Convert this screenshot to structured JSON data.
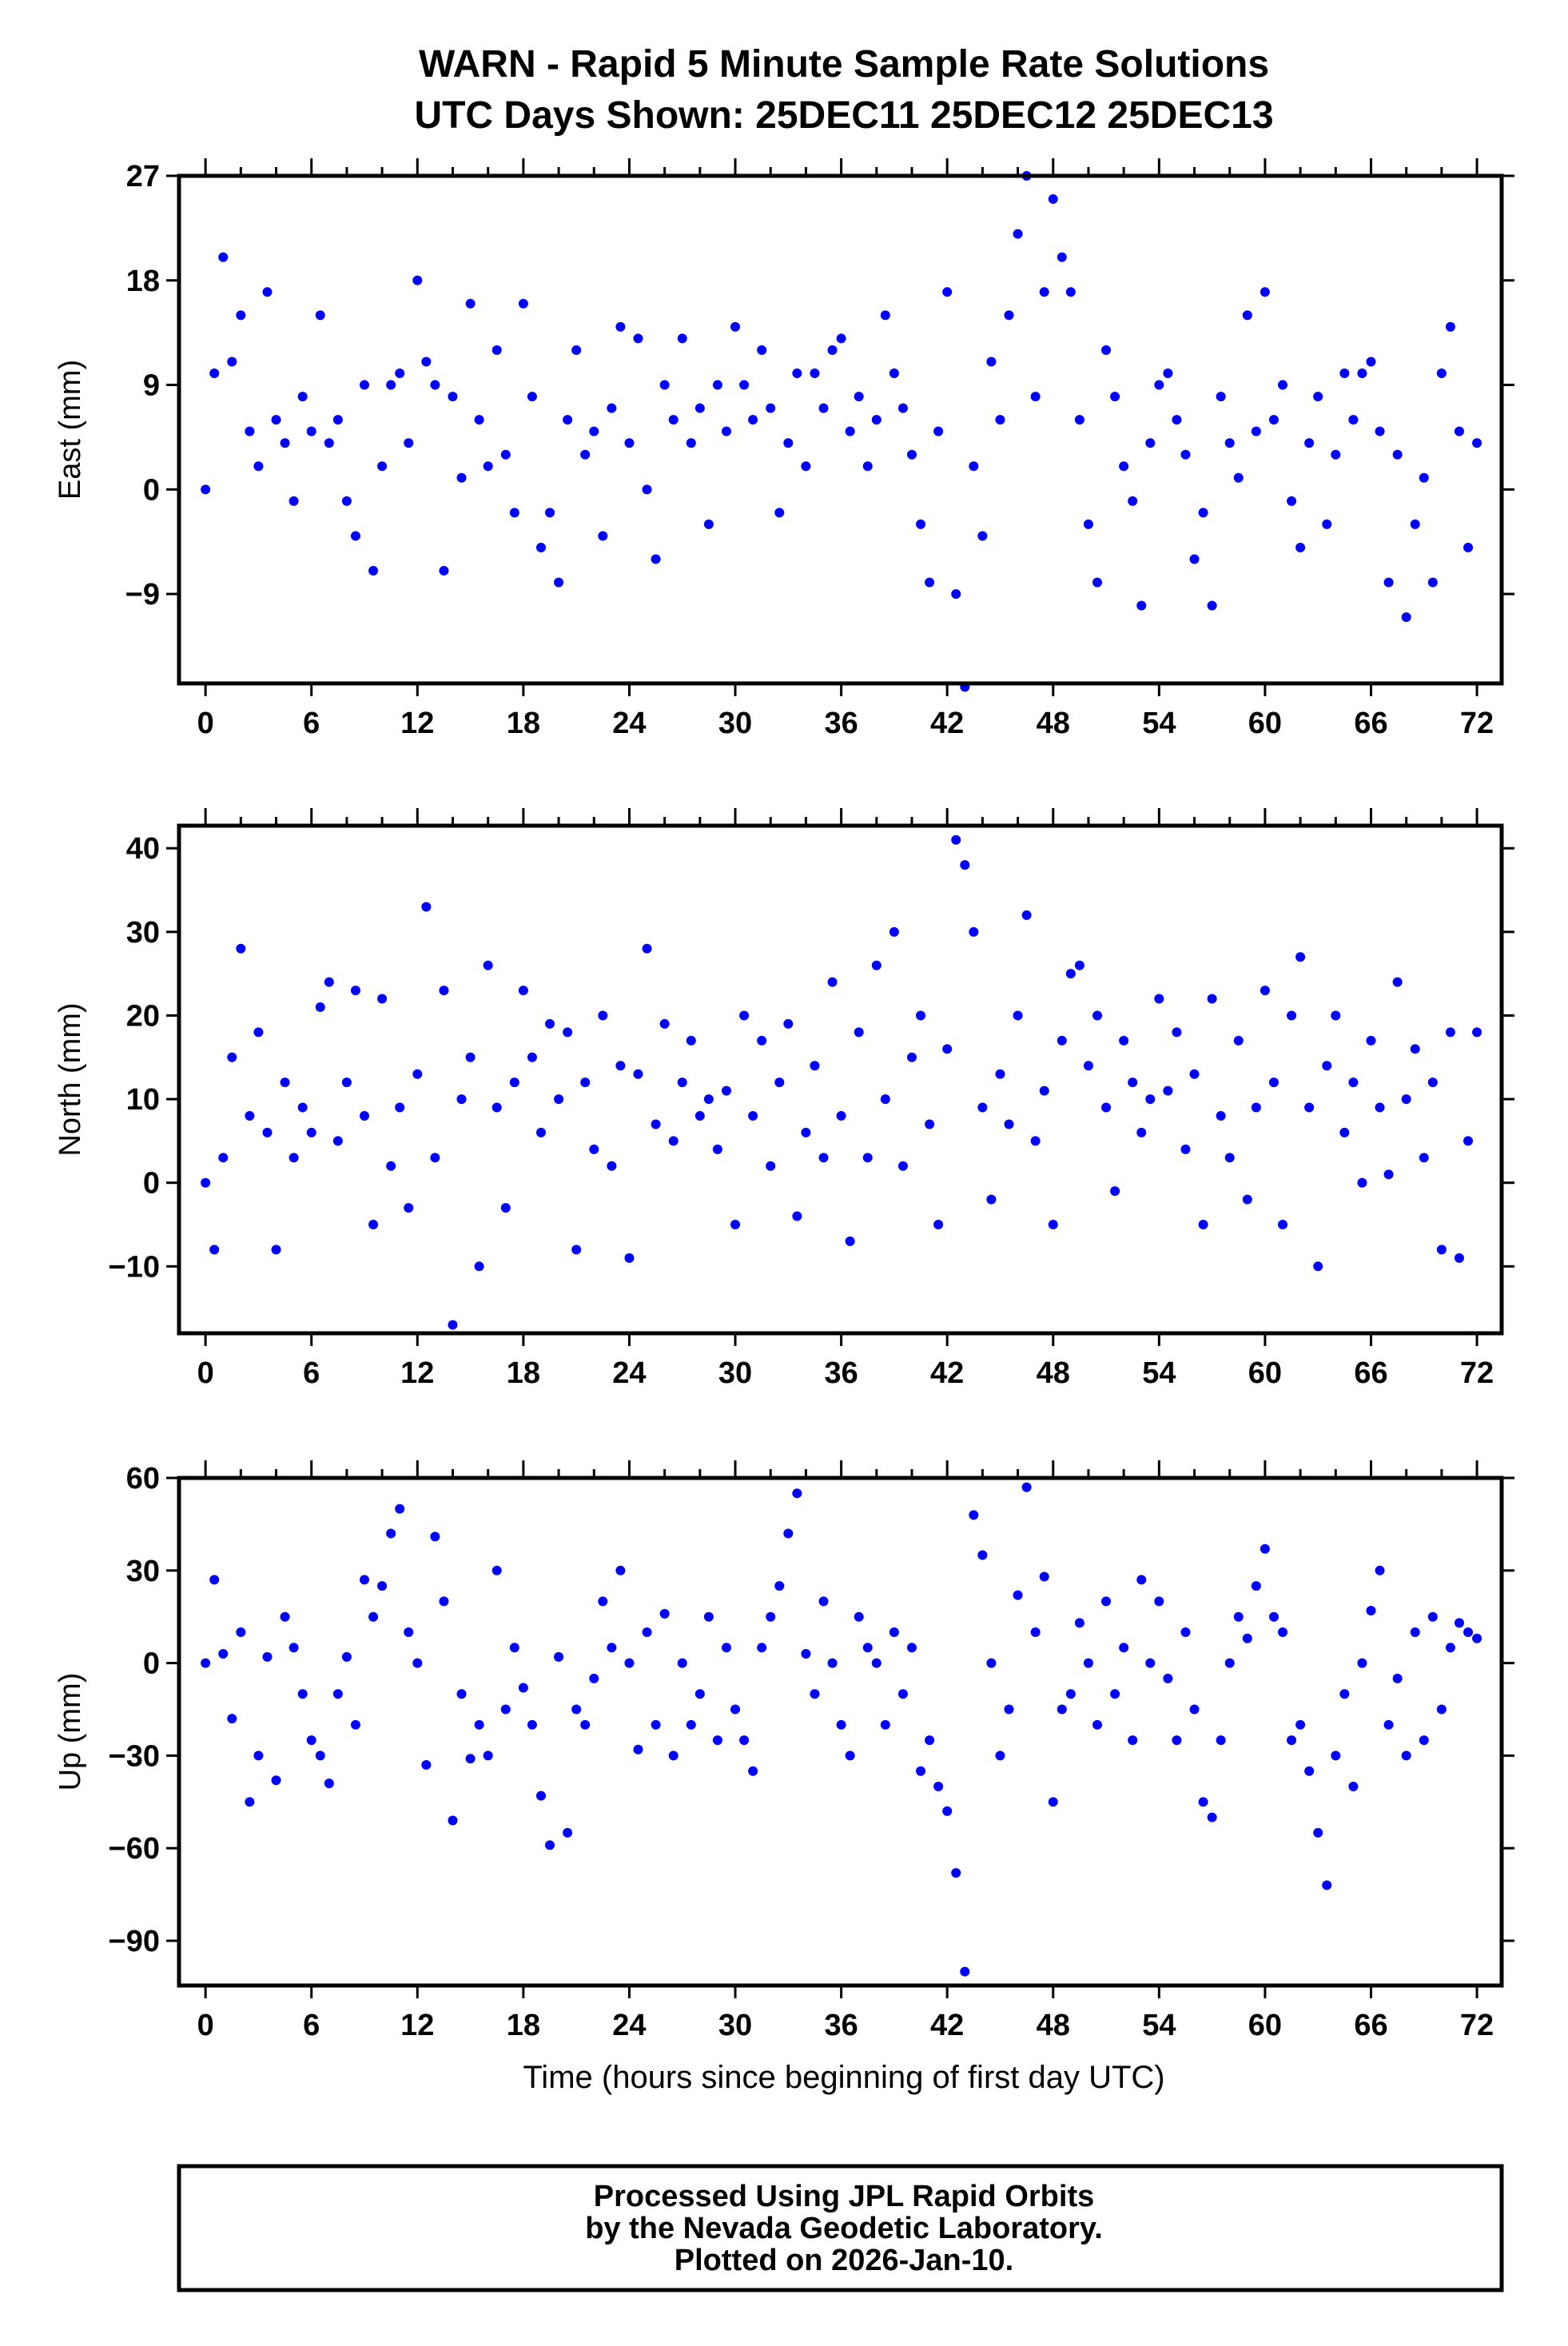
{
  "title": "WARN - Rapid 5 Minute Sample Rate Solutions",
  "subtitle": "UTC Days Shown:  25DEC11 25DEC12 25DEC13",
  "footer": {
    "line1": "Processed Using JPL Rapid Orbits",
    "line2": "by the Nevada Geodetic Laboratory.",
    "line3": "Plotted on 2026-Jan-10."
  },
  "colors": {
    "points": "#0000ff",
    "axes": "#000000"
  },
  "chart_data": [
    {
      "type": "scatter",
      "ylabel": "East (mm)",
      "xlabel": "",
      "xlim": [
        -1.5,
        73.4
      ],
      "ylim": [
        -16.7,
        27
      ],
      "xticks": [
        0,
        6,
        12,
        18,
        24,
        30,
        36,
        42,
        48,
        54,
        60,
        66,
        72
      ],
      "yticks": [
        27,
        18,
        9,
        0,
        -9
      ],
      "x_start": 0,
      "x_step": 0.5,
      "values": [
        0,
        10,
        20,
        11,
        15,
        5,
        2,
        17,
        6,
        4,
        -1,
        8,
        5,
        15,
        4,
        6,
        -1,
        -4,
        9,
        -7,
        2,
        9,
        10,
        4,
        18,
        11,
        9,
        -7,
        8,
        1,
        16,
        6,
        2,
        12,
        3,
        -2,
        16,
        8,
        -5,
        -2,
        -8,
        6,
        12,
        3,
        5,
        -4,
        7,
        14,
        4,
        13,
        0,
        -6,
        9,
        6,
        13,
        4,
        7,
        -3,
        9,
        5,
        14,
        9,
        6,
        12,
        7,
        -2,
        4,
        10,
        2,
        10,
        7,
        12,
        13,
        5,
        8,
        2,
        6,
        15,
        10,
        7,
        3,
        -3,
        -8,
        5,
        17,
        -9,
        -17,
        2,
        -4,
        11,
        6,
        15,
        22,
        27,
        8,
        17,
        25,
        20,
        17,
        6,
        -3,
        -8,
        12,
        8,
        2,
        -1,
        -10,
        4,
        9,
        10,
        6,
        3,
        -6,
        -2,
        -10,
        8,
        4,
        1,
        15,
        5,
        17,
        6,
        9,
        -1,
        -5,
        4,
        8,
        -3,
        3,
        10,
        6,
        10,
        11,
        5,
        -8,
        3,
        -11,
        -3,
        1,
        -8,
        10,
        14,
        5,
        -5,
        4
      ]
    },
    {
      "type": "scatter",
      "ylabel": "North (mm)",
      "xlabel": "",
      "xlim": [
        -1.5,
        73.4
      ],
      "ylim": [
        -18,
        42.7
      ],
      "xticks": [
        0,
        6,
        12,
        18,
        24,
        30,
        36,
        42,
        48,
        54,
        60,
        66,
        72
      ],
      "yticks": [
        40,
        30,
        20,
        10,
        0,
        -10
      ],
      "x_start": 0,
      "x_step": 0.5,
      "values": [
        0,
        -8,
        3,
        15,
        28,
        8,
        18,
        6,
        -8,
        12,
        3,
        9,
        6,
        21,
        24,
        5,
        12,
        23,
        8,
        -5,
        22,
        2,
        9,
        -3,
        13,
        33,
        3,
        23,
        -17,
        10,
        15,
        -10,
        26,
        9,
        -3,
        12,
        23,
        15,
        6,
        19,
        10,
        18,
        -8,
        12,
        4,
        20,
        2,
        14,
        -9,
        13,
        28,
        7,
        19,
        5,
        12,
        17,
        8,
        10,
        4,
        11,
        -5,
        20,
        8,
        17,
        2,
        12,
        19,
        -4,
        6,
        14,
        3,
        24,
        8,
        -7,
        18,
        3,
        26,
        10,
        30,
        2,
        15,
        20,
        7,
        -5,
        16,
        41,
        38,
        30,
        9,
        -2,
        13,
        7,
        20,
        32,
        5,
        11,
        -5,
        17,
        25,
        26,
        14,
        20,
        9,
        -1,
        17,
        12,
        6,
        10,
        22,
        11,
        18,
        4,
        13,
        -5,
        22,
        8,
        3,
        17,
        -2,
        9,
        23,
        12,
        -5,
        20,
        27,
        9,
        -10,
        14,
        20,
        6,
        12,
        0,
        17,
        9,
        1,
        24,
        10,
        16,
        3,
        12,
        -8,
        18,
        -9,
        5,
        18
      ]
    },
    {
      "type": "scatter",
      "ylabel": "Up (mm)",
      "xlabel": "Time (hours since beginning of first day UTC)",
      "xlim": [
        -1.5,
        73.4
      ],
      "ylim": [
        -104.5,
        60
      ],
      "xticks": [
        0,
        6,
        12,
        18,
        24,
        30,
        36,
        42,
        48,
        54,
        60,
        66,
        72
      ],
      "yticks": [
        60,
        30,
        0,
        -30,
        -60,
        -90
      ],
      "x_start": 0,
      "x_step": 0.5,
      "values": [
        0,
        27,
        3,
        -18,
        10,
        -45,
        -30,
        2,
        -38,
        15,
        5,
        -10,
        -25,
        -30,
        -39,
        -10,
        2,
        -20,
        27,
        15,
        25,
        42,
        50,
        10,
        0,
        -33,
        41,
        20,
        -51,
        -10,
        -31,
        -20,
        -30,
        30,
        -15,
        5,
        -8,
        -20,
        -43,
        -59,
        2,
        -55,
        -15,
        -20,
        -5,
        20,
        5,
        30,
        0,
        -28,
        10,
        -20,
        16,
        -30,
        0,
        -20,
        -10,
        15,
        -25,
        5,
        -15,
        -25,
        -35,
        5,
        15,
        25,
        42,
        55,
        3,
        -10,
        20,
        0,
        -20,
        -30,
        15,
        5,
        0,
        -20,
        10,
        -10,
        5,
        -35,
        -25,
        -40,
        -48,
        -68,
        -100,
        48,
        35,
        0,
        -30,
        -15,
        22,
        57,
        10,
        28,
        -45,
        -15,
        -10,
        13,
        0,
        -20,
        20,
        -10,
        5,
        -25,
        27,
        0,
        20,
        -5,
        -25,
        10,
        -15,
        -45,
        -50,
        -25,
        0,
        15,
        8,
        25,
        37,
        15,
        10,
        -25,
        -20,
        -35,
        -55,
        -72,
        -30,
        -10,
        -40,
        0,
        17,
        30,
        -20,
        -5,
        -30,
        10,
        -25,
        15,
        -15,
        5,
        13,
        10,
        8
      ]
    }
  ]
}
